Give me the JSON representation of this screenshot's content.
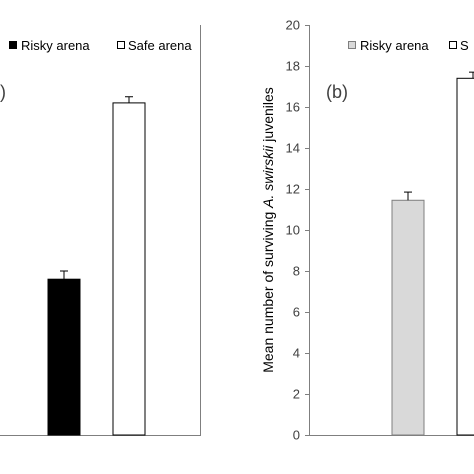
{
  "chart_data": [
    {
      "type": "bar",
      "panel_label": ")",
      "categories": [
        "Risky arena",
        "Safe arena"
      ],
      "values": [
        7.6,
        16.2
      ],
      "errors": [
        0.4,
        0.3
      ],
      "colors": [
        "#000000",
        "#ffffff"
      ],
      "ylim": [
        0,
        20
      ],
      "legend": [
        {
          "label": "Risky arena",
          "color": "#000000"
        },
        {
          "label": "Safe arena",
          "color": "#ffffff"
        }
      ],
      "legend_position": "top"
    },
    {
      "type": "bar",
      "panel_label": "(b)",
      "categories": [
        "Risky arena",
        "Safe arena"
      ],
      "values": [
        11.45,
        17.4
      ],
      "errors": [
        0.4,
        0.3
      ],
      "colors": [
        "#d9d9d9",
        "#ffffff"
      ],
      "ylabel_parts": [
        "Mean number of surviving ",
        "A. swirskii",
        " juveniles"
      ],
      "yticks": [
        "0",
        "2",
        "4",
        "6",
        "8",
        "10",
        "12",
        "14",
        "16",
        "18",
        "20"
      ],
      "ylim": [
        0,
        20
      ],
      "legend": [
        {
          "label": "Risky arena",
          "color": "#d9d9d9"
        },
        {
          "label": "S",
          "color": "#ffffff"
        }
      ],
      "legend_position": "top"
    }
  ]
}
